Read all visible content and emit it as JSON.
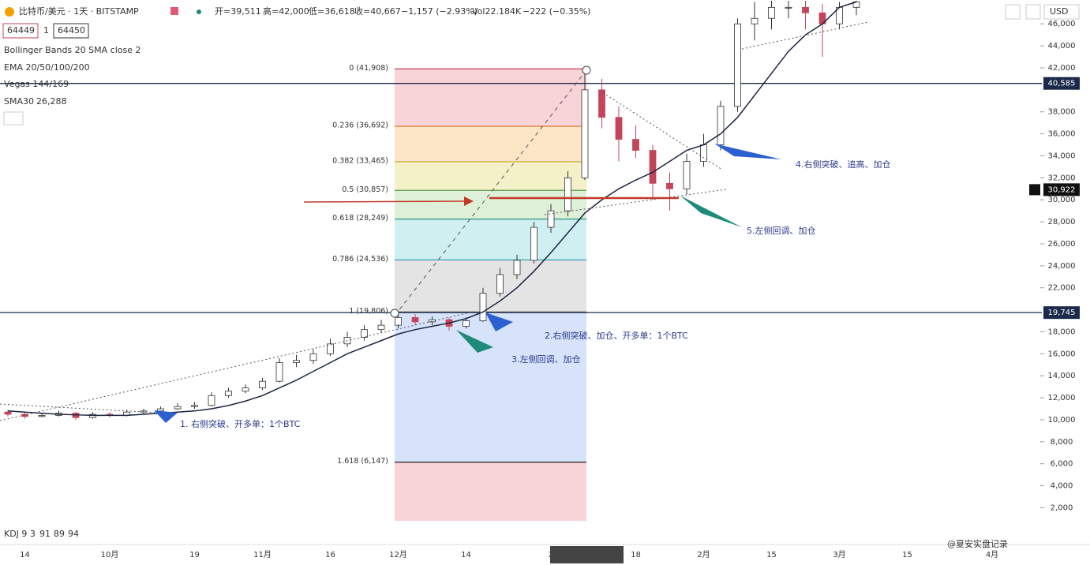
{
  "chart_data": {
    "type": "candlestick",
    "title": "比特币/美元 · 1天 · BITSTAMP",
    "ohlc_text": [
      "开=39,511",
      "高=42,000",
      "低=36,618",
      "收=40,667",
      "−1,157 (−2.93%)",
      "Vol22.184K",
      "−222 (−0.35%)"
    ],
    "inputs": [
      "64449",
      "1",
      "64450"
    ],
    "indicators": [
      "Bollinger Bands 20 SMA close 2",
      "EMA 20/50/100/200",
      "Vegas 144/169"
    ],
    "sma_label": "SMA30",
    "sma_value": "26,288",
    "currency": "USD",
    "kdj": [
      "KDJ 9 3",
      "91",
      "89",
      "94"
    ],
    "watermark": "@夏安实盘记录",
    "categories": [
      null,
      "14",
      null,
      null,
      null,
      null,
      "10月",
      null,
      null,
      null,
      null,
      "19",
      null,
      null,
      null,
      "11月",
      null,
      null,
      null,
      "16",
      null,
      null,
      null,
      "12月",
      null,
      null,
      null,
      "14",
      null,
      null,
      null,
      null,
      "2",
      null,
      null,
      null,
      null,
      "18",
      null,
      null,
      null,
      "2月",
      null,
      null,
      null,
      "15",
      null,
      null,
      null,
      "3月",
      null,
      null,
      null,
      "15",
      null,
      null,
      null,
      null,
      "4月"
    ],
    "open": [
      10700,
      10500,
      10300,
      10400,
      10600,
      10200,
      10500,
      10400,
      10700,
      10800,
      11000,
      11200,
      11300,
      12200,
      12600,
      12900,
      13500,
      15200,
      15400,
      16000,
      16900,
      17500,
      18200,
      18600,
      19300,
      18900,
      19100,
      18500,
      19000,
      21500,
      23200,
      24500,
      27500,
      29000,
      32000,
      40000,
      37500,
      35500,
      34500,
      31500,
      31000,
      33500,
      35000,
      38500,
      46000,
      46500,
      47500,
      47500,
      47000,
      46000,
      47500,
      null,
      null,
      null,
      null,
      null,
      null,
      null,
      null
    ],
    "high": [
      10900,
      10700,
      10600,
      10800,
      10700,
      10700,
      10700,
      10900,
      11000,
      11200,
      11500,
      11600,
      12500,
      12900,
      13200,
      13800,
      15600,
      15900,
      16400,
      17400,
      18000,
      18600,
      19100,
      19800,
      19600,
      19400,
      19300,
      19300,
      22000,
      23800,
      25000,
      28000,
      29600,
      32600,
      41900,
      41000,
      38500,
      36800,
      35000,
      32500,
      34200,
      36000,
      39000,
      46500,
      48000,
      48100,
      48100,
      48100,
      47800,
      48000,
      48100,
      null,
      null,
      null,
      null,
      null,
      null,
      null,
      null
    ],
    "low": [
      10300,
      10100,
      10200,
      10300,
      10000,
      10100,
      10200,
      10300,
      10500,
      10600,
      10900,
      11000,
      11200,
      12000,
      12400,
      12700,
      13400,
      14800,
      15100,
      15800,
      16600,
      17200,
      17900,
      18300,
      18600,
      18600,
      18100,
      18300,
      18900,
      21200,
      22800,
      24200,
      27000,
      28500,
      31800,
      36500,
      33500,
      33800,
      30000,
      29000,
      30500,
      33000,
      34500,
      38000,
      44500,
      45500,
      46500,
      45500,
      43000,
      45500,
      46800,
      null,
      null,
      null,
      null,
      null,
      null,
      null,
      null
    ],
    "close": [
      10500,
      10300,
      10400,
      10600,
      10200,
      10500,
      10400,
      10700,
      10800,
      11000,
      11200,
      11300,
      12200,
      12600,
      12900,
      13500,
      15200,
      15400,
      16000,
      16900,
      17500,
      18200,
      18600,
      19300,
      18900,
      19100,
      18500,
      19000,
      21500,
      23200,
      24500,
      27500,
      29000,
      32000,
      40000,
      37500,
      35500,
      34500,
      31500,
      31000,
      33500,
      35000,
      38500,
      46000,
      46500,
      47500,
      47500,
      47000,
      46000,
      47500,
      48000,
      null,
      null,
      null,
      null,
      null,
      null,
      null,
      null
    ],
    "series": [
      {
        "name": "SMA30",
        "color": "#1b2440",
        "values": [
          10800,
          10700,
          10600,
          10500,
          10450,
          10400,
          10400,
          10400,
          10500,
          10600,
          10700,
          10800,
          11000,
          11300,
          11700,
          12200,
          12900,
          13600,
          14400,
          15200,
          16000,
          16600,
          17200,
          17800,
          18200,
          18500,
          18800,
          19200,
          19800,
          20800,
          22000,
          23500,
          25200,
          27000,
          28800,
          30000,
          31000,
          31800,
          32500,
          33500,
          34500,
          35000,
          36000,
          37500,
          39500,
          41500,
          43500,
          45000,
          46000,
          47500,
          48000,
          null,
          null,
          null,
          null,
          null,
          null,
          null,
          null
        ]
      }
    ],
    "up_color": "#ffffff",
    "down_color": "#c2455a",
    "ylim": [
      -1340,
      48170
    ],
    "yticks": [
      {
        "value": 2000,
        "label": "2,000"
      },
      {
        "value": 4000,
        "label": "4,000"
      },
      {
        "value": 6000,
        "label": "6,000"
      },
      {
        "value": 8000,
        "label": "8,000"
      },
      {
        "value": 10000,
        "label": "10,000"
      },
      {
        "value": 12000,
        "label": "12,000"
      },
      {
        "value": 14000,
        "label": "14,000"
      },
      {
        "value": 16000,
        "label": "16,000"
      },
      {
        "value": 18000,
        "label": "18,000"
      },
      {
        "value": 22000,
        "label": "22,000"
      },
      {
        "value": 24000,
        "label": "24,000"
      },
      {
        "value": 26000,
        "label": "26,000"
      },
      {
        "value": 28000,
        "label": "28,000"
      },
      {
        "value": 30000,
        "label": "30,000"
      },
      {
        "value": 32000,
        "label": "32,000"
      },
      {
        "value": 34000,
        "label": "34,000"
      },
      {
        "value": 36000,
        "label": "36,000"
      },
      {
        "value": 38000,
        "label": "38,000"
      },
      {
        "value": 42000,
        "label": "42,000"
      },
      {
        "value": 44000,
        "label": "44,000"
      },
      {
        "value": 46000,
        "label": "46,000"
      }
    ],
    "fib": {
      "levels": [
        {
          "value": 41908,
          "label": "0 (41,908)"
        },
        {
          "value": 36692,
          "label": "0.236 (36,692)"
        },
        {
          "value": 33465,
          "label": "0.382 (33,465)"
        },
        {
          "value": 30857,
          "label": "0.5 (30,857)"
        },
        {
          "value": 28249,
          "label": "0.618 (28,249)"
        },
        {
          "value": 24536,
          "label": "0.786 (24,536)"
        },
        {
          "value": 19806,
          "label": "1 (19,806)"
        },
        {
          "value": 6147,
          "label": "1.618 (6,147)"
        }
      ],
      "colors": [
        "#c2455a",
        "#d97a35",
        "#c9a227",
        "#5a9a4a",
        "#2f8f86",
        "#3aa0b8",
        "#555",
        "#222"
      ],
      "fills": [
        "#f8d3d8",
        "#fde6c6",
        "#f4f0c8",
        "#dff0d8",
        "#cfeff1",
        "#e4e4e4",
        "#d6e3fb",
        "#f8d3d8"
      ]
    },
    "hlines": [
      {
        "value": 40585,
        "label": "40,585"
      },
      {
        "value": 19745,
        "label": "19,745"
      }
    ],
    "price": {
      "value": 30922,
      "label": "30,922"
    },
    "annotations": [
      "1. 右侧突破、开多单：1个BTC",
      "2.右侧突破、加仓、开多单：1个BTC",
      "3.左侧回调、加仓",
      "4.右侧突破、追高、加仓",
      "5.左侧回调、加仓"
    ]
  }
}
